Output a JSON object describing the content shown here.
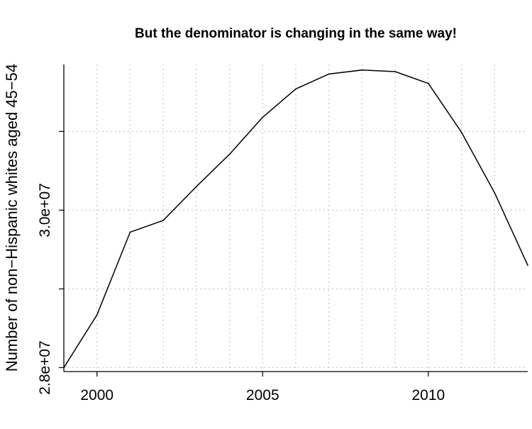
{
  "chart_data": {
    "type": "line",
    "title": "But the denominator is changing in the same way!",
    "xlabel": "",
    "ylabel": "Number of non−Hispanic whites aged 45−54",
    "xlim": [
      1999,
      2013
    ],
    "ylim": [
      27950000,
      31850000
    ],
    "x": [
      1999,
      2000,
      2001,
      2002,
      2003,
      2004,
      2005,
      2006,
      2007,
      2008,
      2009,
      2010,
      2011,
      2012,
      2013
    ],
    "series": [
      {
        "values": [
          28000000,
          28670000,
          29720000,
          29870000,
          30300000,
          30710000,
          31180000,
          31540000,
          31730000,
          31780000,
          31760000,
          31610000,
          30990000,
          30220000,
          29300000
        ]
      }
    ],
    "xticks": [
      2000,
      2005,
      2010
    ],
    "xtick_labels": [
      "2000",
      "2005",
      "2010"
    ],
    "yticks": [
      28000000,
      29000000,
      30000000,
      31000000
    ],
    "ytick_labels": [
      "2.8e+07",
      "3.0e+07"
    ],
    "ytick_labeled_values": [
      28000000,
      30000000
    ],
    "grid_x": [
      2000,
      2001,
      2002,
      2003,
      2004,
      2005,
      2006,
      2007,
      2008,
      2009,
      2010,
      2011,
      2012
    ],
    "grid_y": [
      28000000,
      29000000,
      30000000,
      31000000
    ],
    "grid": true,
    "line_color": "#000000",
    "grid_color": "#c8c8c8"
  }
}
